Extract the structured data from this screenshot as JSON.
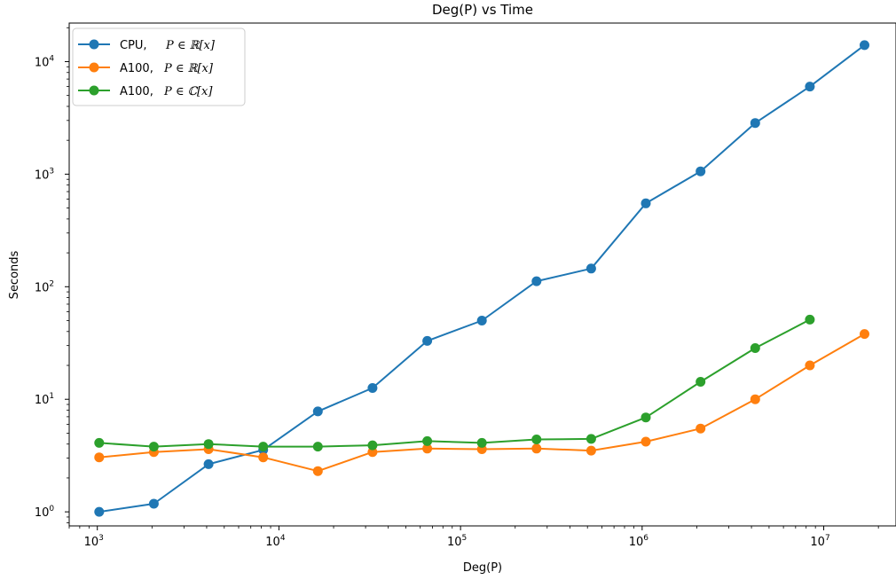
{
  "chart_data": {
    "type": "line",
    "title": "Deg(P) vs Time",
    "xlabel": "Deg(P)",
    "ylabel": "Seconds",
    "xscale": "log",
    "yscale": "log",
    "xlim": [
      700,
      25000000
    ],
    "ylim": [
      0.75,
      22000
    ],
    "x_ticks": [
      {
        "value": 1000,
        "base": "10",
        "exp": "3"
      },
      {
        "value": 10000,
        "base": "10",
        "exp": "4"
      },
      {
        "value": 100000,
        "base": "10",
        "exp": "5"
      },
      {
        "value": 1000000,
        "base": "10",
        "exp": "6"
      },
      {
        "value": 10000000,
        "base": "10",
        "exp": "7"
      }
    ],
    "y_ticks": [
      {
        "value": 1,
        "base": "10",
        "exp": "0"
      },
      {
        "value": 10,
        "base": "10",
        "exp": "1"
      },
      {
        "value": 100,
        "base": "10",
        "exp": "2"
      },
      {
        "value": 1000,
        "base": "10",
        "exp": "3"
      },
      {
        "value": 10000,
        "base": "10",
        "exp": "4"
      }
    ],
    "grid": false,
    "legend_position": "top-left",
    "series": [
      {
        "name_prefix": "CPU,",
        "name_math": "P ∈ ℝ[x]",
        "color": "#1f77b4",
        "x": [
          1024,
          2048,
          4096,
          8192,
          16384,
          32768,
          65536,
          131072,
          262144,
          524288,
          1048576,
          2097152,
          4194304,
          8388608,
          16777216
        ],
        "y": [
          1.0,
          1.18,
          2.65,
          3.55,
          7.8,
          12.6,
          33,
          50,
          112,
          145,
          550,
          1060,
          2850,
          6000,
          14000
        ]
      },
      {
        "name_prefix": "A100,",
        "name_math": "P ∈ ℝ[x]",
        "color": "#ff7f0e",
        "x": [
          1024,
          2048,
          4096,
          8192,
          16384,
          32768,
          65536,
          131072,
          262144,
          524288,
          1048576,
          2097152,
          4194304,
          8388608,
          16777216
        ],
        "y": [
          3.05,
          3.4,
          3.6,
          3.05,
          2.3,
          3.4,
          3.65,
          3.6,
          3.65,
          3.5,
          4.2,
          5.5,
          10,
          20,
          38
        ]
      },
      {
        "name_prefix": "A100,",
        "name_math": "P ∈ ℂ[x]",
        "color": "#2ca02c",
        "x": [
          1024,
          2048,
          4096,
          8192,
          16384,
          32768,
          65536,
          131072,
          262144,
          524288,
          1048576,
          2097152,
          4194304,
          8388608
        ],
        "y": [
          4.1,
          3.8,
          4.0,
          3.8,
          3.8,
          3.9,
          4.25,
          4.1,
          4.4,
          4.45,
          6.9,
          14.3,
          28.5,
          51
        ]
      }
    ]
  }
}
